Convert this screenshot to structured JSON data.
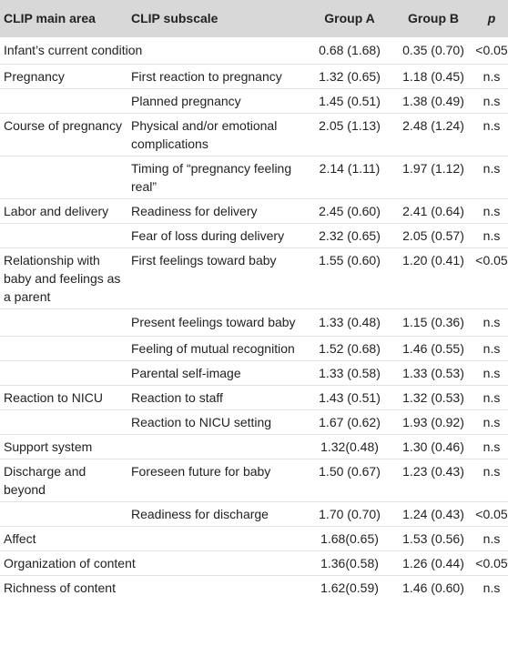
{
  "table": {
    "headers": [
      "CLIP main area",
      "CLIP subscale",
      "Group A",
      "Group B",
      "p"
    ],
    "rows": [
      {
        "area": "Infant’s current condition",
        "subscale": "",
        "a": "0.68 (1.68)",
        "b": "0.35 (0.70)",
        "p": "<0.05"
      },
      {
        "area": "Pregnancy",
        "subscale": "First reaction to pregnancy",
        "a": "1.32 (0.65)",
        "b": "1.18 (0.45)",
        "p": "n.s"
      },
      {
        "area": "",
        "subscale": "Planned pregnancy",
        "a": "1.45 (0.51)",
        "b": "1.38 (0.49)",
        "p": "n.s"
      },
      {
        "area": "Course of pregnancy",
        "subscale": "Physical and/or emotional complications",
        "a": "2.05 (1.13)",
        "b": "2.48 (1.24)",
        "p": "n.s"
      },
      {
        "area": "",
        "subscale": "Timing of “pregnancy feeling real”",
        "a": "2.14 (1.11)",
        "b": "1.97 (1.12)",
        "p": "n.s"
      },
      {
        "area": "Labor and delivery",
        "subscale": "Readiness for delivery",
        "a": "2.45 (0.60)",
        "b": "2.41 (0.64)",
        "p": "n.s"
      },
      {
        "area": "",
        "subscale": "Fear of loss during delivery",
        "a": "2.32 (0.65)",
        "b": "2.05 (0.57)",
        "p": "n.s"
      },
      {
        "area": "Relationship with baby and feelings as a parent",
        "subscale": "First feelings toward baby",
        "a": "1.55 (0.60)",
        "b": "1.20 (0.41)",
        "p": "<0.05"
      },
      {
        "area": "",
        "subscale": "Present feelings toward baby",
        "a": "1.33 (0.48)",
        "b": "1.15 (0.36)",
        "p": "n.s"
      },
      {
        "area": "",
        "subscale": "Feeling of mutual recognition",
        "a": "1.52 (0.68)",
        "b": "1.46 (0.55)",
        "p": "n.s"
      },
      {
        "area": "",
        "subscale": "Parental self-image",
        "a": "1.33 (0.58)",
        "b": "1.33 (0.53)",
        "p": "n.s"
      },
      {
        "area": "Reaction to NICU",
        "subscale": "Reaction to staff",
        "a": "1.43 (0.51)",
        "b": "1.32 (0.53)",
        "p": "n.s"
      },
      {
        "area": "",
        "subscale": "Reaction to NICU setting",
        "a": "1.67 (0.62)",
        "b": "1.93 (0.92)",
        "p": "n.s"
      },
      {
        "area": "Support system",
        "subscale": "",
        "a": "1.32(0.48)",
        "b": "1.30 (0.46)",
        "p": "n.s"
      },
      {
        "area": "Discharge and beyond",
        "subscale": "Foreseen future for baby",
        "a": "1.50 (0.67)",
        "b": "1.23 (0.43)",
        "p": "n.s"
      },
      {
        "area": "",
        "subscale": "Readiness for discharge",
        "a": "1.70 (0.70)",
        "b": "1.24 (0.43)",
        "p": "<0.05"
      },
      {
        "area": "Affect",
        "subscale": "",
        "a": "1.68(0.65)",
        "b": "1.53 (0.56)",
        "p": "n.s"
      },
      {
        "area": "Organization of content",
        "subscale": "",
        "a": "1.36(0.58)",
        "b": "1.26 (0.44)",
        "p": "<0.05"
      },
      {
        "area": "Richness of content",
        "subscale": "",
        "a": "1.62(0.59)",
        "b": "1.46 (0.60)",
        "p": "n.s"
      }
    ]
  }
}
